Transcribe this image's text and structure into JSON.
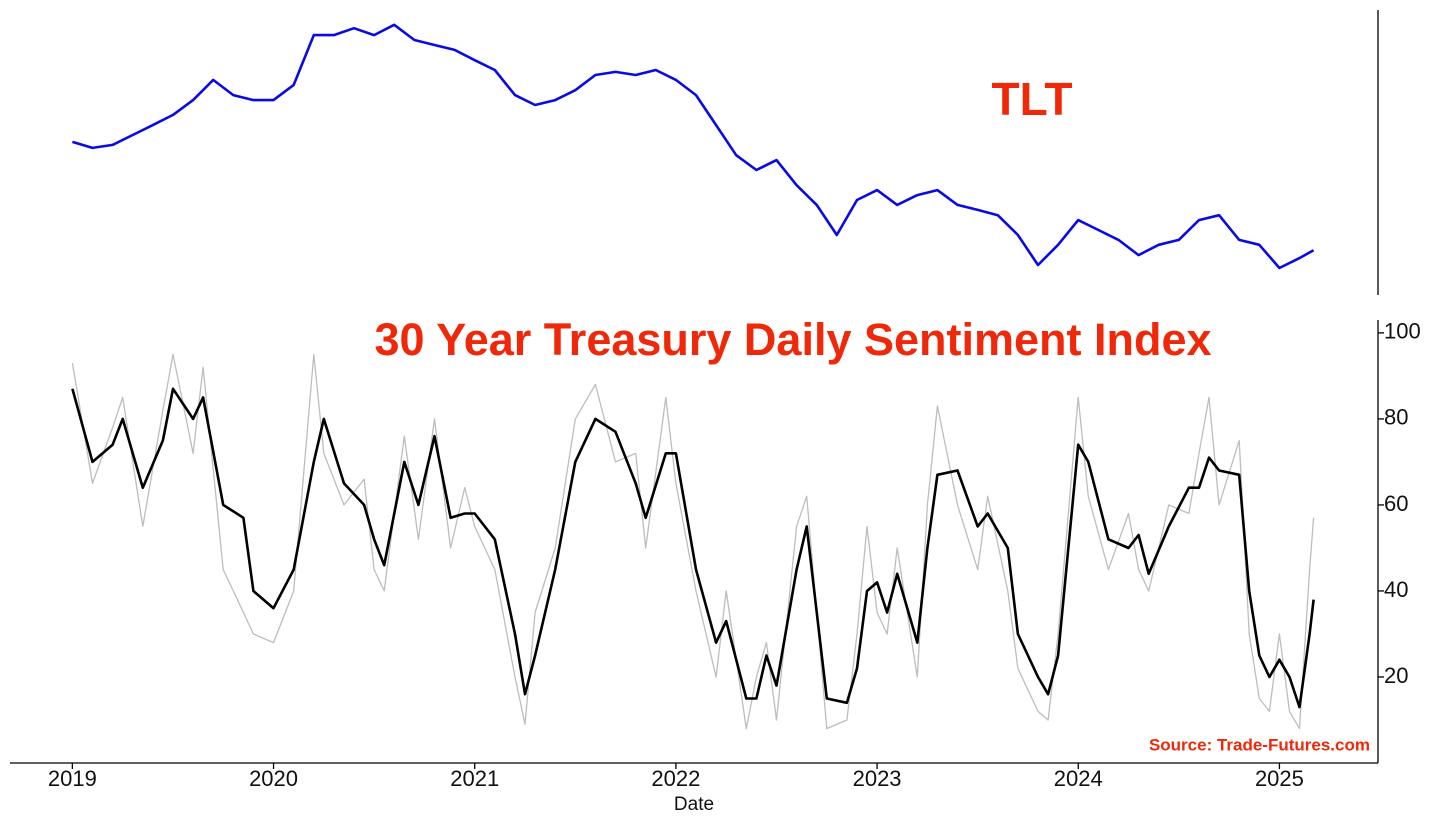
{
  "chart_data": [
    {
      "type": "line",
      "title": "TLT",
      "xlim": [
        2018.69,
        2025.49
      ],
      "ylim": [
        75,
        150
      ],
      "series": [
        {
          "color": "#0a0ae6",
          "x": [
            2019.0,
            2019.1,
            2019.2,
            2019.3,
            2019.4,
            2019.5,
            2019.6,
            2019.7,
            2019.8,
            2019.9,
            2020.0,
            2020.1,
            2020.2,
            2020.3,
            2020.4,
            2020.5,
            2020.6,
            2020.7,
            2020.8,
            2020.9,
            2021.0,
            2021.1,
            2021.2,
            2021.3,
            2021.4,
            2021.5,
            2021.6,
            2021.7,
            2021.8,
            2021.9,
            2022.0,
            2022.1,
            2022.2,
            2022.3,
            2022.4,
            2022.5,
            2022.6,
            2022.7,
            2022.8,
            2022.9,
            2023.0,
            2023.1,
            2023.2,
            2023.3,
            2023.4,
            2023.5,
            2023.6,
            2023.7,
            2023.8,
            2023.9,
            2024.0,
            2024.1,
            2024.2,
            2024.3,
            2024.4,
            2024.5,
            2024.6,
            2024.7,
            2024.8,
            2024.9,
            2025.0,
            2025.1,
            2025.17
          ],
          "values": [
            115.3,
            113.7,
            114.5,
            117.1,
            119.7,
            122.4,
            126.3,
            131.6,
            127.6,
            126.3,
            126.3,
            130.3,
            143.4,
            143.4,
            145.2,
            143.4,
            146.1,
            142.1,
            140.8,
            139.5,
            136.8,
            134.2,
            127.6,
            125.0,
            126.3,
            128.9,
            132.9,
            133.7,
            132.9,
            134.2,
            131.6,
            127.6,
            119.7,
            111.8,
            107.9,
            110.5,
            103.9,
            98.7,
            90.8,
            100.0,
            102.6,
            98.7,
            101.3,
            102.6,
            98.7,
            97.4,
            96.0,
            90.8,
            82.9,
            88.2,
            94.7,
            92.1,
            89.5,
            85.5,
            88.2,
            89.5,
            94.7,
            96.0,
            89.5,
            88.2,
            82.1,
            84.7,
            86.8
          ]
        }
      ]
    },
    {
      "type": "line",
      "title": "30 Year Treasury Daily Sentiment Index",
      "xlabel": "Date",
      "annotation": "Source: Trade-Futures.com",
      "xlim": [
        2018.69,
        2025.49
      ],
      "ylim": [
        0,
        103
      ],
      "xticks": [
        2019,
        2020,
        2021,
        2022,
        2023,
        2024,
        2025
      ],
      "yticks": [
        20,
        40,
        60,
        80,
        100
      ],
      "series": [
        {
          "color": "#bdbdbd",
          "x": [
            2019.0,
            2019.1,
            2019.2,
            2019.25,
            2019.35,
            2019.45,
            2019.5,
            2019.6,
            2019.65,
            2019.75,
            2019.85,
            2019.9,
            2020.0,
            2020.1,
            2020.2,
            2020.25,
            2020.35,
            2020.45,
            2020.5,
            2020.55,
            2020.65,
            2020.72,
            2020.8,
            2020.88,
            2020.95,
            2021.0,
            2021.1,
            2021.2,
            2021.25,
            2021.3,
            2021.4,
            2021.5,
            2021.6,
            2021.7,
            2021.8,
            2021.85,
            2021.95,
            2022.0,
            2022.1,
            2022.2,
            2022.25,
            2022.35,
            2022.4,
            2022.45,
            2022.5,
            2022.6,
            2022.65,
            2022.75,
            2022.85,
            2022.9,
            2022.95,
            2023.0,
            2023.05,
            2023.1,
            2023.2,
            2023.25,
            2023.3,
            2023.4,
            2023.5,
            2023.55,
            2023.65,
            2023.7,
            2023.8,
            2023.85,
            2023.9,
            2024.0,
            2024.05,
            2024.15,
            2024.25,
            2024.3,
            2024.35,
            2024.45,
            2024.55,
            2024.6,
            2024.65,
            2024.7,
            2024.8,
            2024.85,
            2024.9,
            2024.95,
            2025.0,
            2025.05,
            2025.1,
            2025.15,
            2025.17
          ],
          "values": [
            93,
            65,
            78,
            85,
            55,
            82,
            95,
            72,
            92,
            45,
            35,
            30,
            28,
            40,
            95,
            72,
            60,
            66,
            45,
            40,
            76,
            52,
            80,
            50,
            64,
            55,
            45,
            20,
            9,
            35,
            50,
            80,
            88,
            70,
            72,
            50,
            85,
            65,
            40,
            20,
            40,
            8,
            20,
            28,
            10,
            55,
            62,
            8,
            10,
            30,
            55,
            35,
            30,
            50,
            20,
            60,
            83,
            60,
            45,
            62,
            40,
            22,
            12,
            10,
            30,
            85,
            62,
            45,
            58,
            45,
            40,
            60,
            58,
            72,
            85,
            60,
            75,
            30,
            15,
            12,
            30,
            12,
            8,
            45,
            57
          ]
        },
        {
          "color": "#000000",
          "x": [
            2019.0,
            2019.1,
            2019.2,
            2019.25,
            2019.35,
            2019.45,
            2019.5,
            2019.6,
            2019.65,
            2019.75,
            2019.85,
            2019.9,
            2020.0,
            2020.1,
            2020.2,
            2020.25,
            2020.35,
            2020.45,
            2020.5,
            2020.55,
            2020.65,
            2020.72,
            2020.8,
            2020.88,
            2020.95,
            2021.0,
            2021.1,
            2021.2,
            2021.25,
            2021.3,
            2021.4,
            2021.5,
            2021.6,
            2021.7,
            2021.8,
            2021.85,
            2021.95,
            2022.0,
            2022.1,
            2022.2,
            2022.25,
            2022.35,
            2022.4,
            2022.45,
            2022.5,
            2022.6,
            2022.65,
            2022.75,
            2022.85,
            2022.9,
            2022.95,
            2023.0,
            2023.05,
            2023.1,
            2023.2,
            2023.25,
            2023.3,
            2023.4,
            2023.5,
            2023.55,
            2023.65,
            2023.7,
            2023.8,
            2023.85,
            2023.9,
            2024.0,
            2024.05,
            2024.15,
            2024.25,
            2024.3,
            2024.35,
            2024.45,
            2024.55,
            2024.6,
            2024.65,
            2024.7,
            2024.8,
            2024.85,
            2024.9,
            2024.95,
            2025.0,
            2025.05,
            2025.1,
            2025.15,
            2025.17
          ],
          "values": [
            87,
            70,
            74,
            80,
            64,
            75,
            87,
            80,
            85,
            60,
            57,
            40,
            36,
            45,
            70,
            80,
            65,
            60,
            52,
            46,
            70,
            60,
            76,
            57,
            58,
            58,
            52,
            30,
            16,
            25,
            45,
            70,
            80,
            77,
            65,
            57,
            72,
            72,
            45,
            28,
            33,
            15,
            15,
            25,
            18,
            45,
            55,
            15,
            14,
            22,
            40,
            42,
            35,
            44,
            28,
            50,
            67,
            68,
            55,
            58,
            50,
            30,
            20,
            16,
            25,
            74,
            70,
            52,
            50,
            53,
            44,
            55,
            64,
            64,
            71,
            68,
            67,
            40,
            25,
            20,
            24,
            20,
            13,
            30,
            38
          ]
        }
      ]
    }
  ]
}
